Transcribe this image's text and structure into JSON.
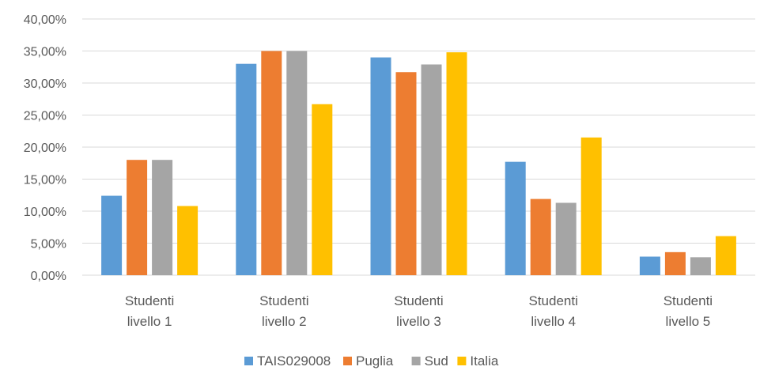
{
  "chart_data": {
    "type": "bar",
    "title": "",
    "xlabel": "",
    "ylabel": "",
    "ylim": [
      0,
      40
    ],
    "y_tick_step": 5,
    "y_tick_labels": [
      "0,00%",
      "5,00%",
      "10,00%",
      "15,00%",
      "20,00%",
      "25,00%",
      "30,00%",
      "35,00%",
      "40,00%"
    ],
    "grid": true,
    "legend_position": "bottom",
    "categories": [
      [
        "Studenti",
        "livello 1"
      ],
      [
        "Studenti",
        "livello 2"
      ],
      [
        "Studenti",
        "livello 3"
      ],
      [
        "Studenti",
        "livello 4"
      ],
      [
        "Studenti",
        "livello 5"
      ]
    ],
    "series": [
      {
        "name": "TAIS029008",
        "color": "#5b9bd5",
        "values": [
          12.4,
          33.0,
          34.0,
          17.7,
          2.9
        ]
      },
      {
        "name": "Puglia",
        "color": "#ed7d31",
        "values": [
          18.0,
          35.0,
          31.7,
          11.9,
          3.6
        ]
      },
      {
        "name": "Sud",
        "color": "#a5a5a5",
        "values": [
          18.0,
          35.0,
          32.9,
          11.3,
          2.8
        ]
      },
      {
        "name": "Italia",
        "color": "#ffc000",
        "values": [
          10.8,
          26.7,
          34.8,
          21.5,
          6.1
        ]
      }
    ]
  }
}
